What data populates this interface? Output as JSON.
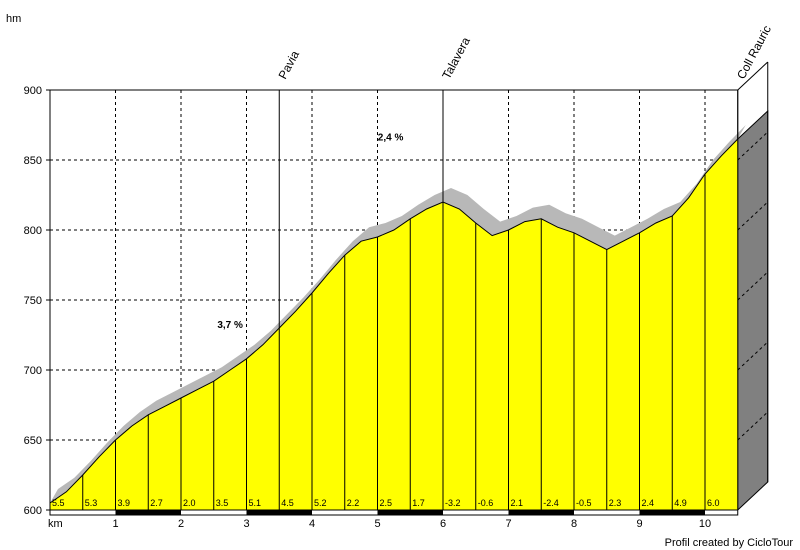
{
  "chart_data": {
    "type": "area",
    "ylabel": "hm",
    "xlabel": "km",
    "ylim": [
      600,
      900
    ],
    "xlim": [
      0,
      10.5
    ],
    "y_ticks": [
      600,
      650,
      700,
      750,
      800,
      850,
      900
    ],
    "x_ticks": [
      1,
      2,
      3,
      4,
      5,
      6,
      7,
      8,
      9,
      10
    ],
    "grid": true,
    "colors": {
      "fill": "#ffff00",
      "shadow": "#b8b8b8",
      "side": "#808080",
      "axis": "#000000"
    },
    "profile": {
      "x": [
        0,
        0.25,
        0.5,
        0.75,
        1,
        1.25,
        1.5,
        1.75,
        2,
        2.25,
        2.5,
        2.75,
        3,
        3.25,
        3.5,
        3.75,
        4,
        4.25,
        4.5,
        4.75,
        5,
        5.25,
        5.5,
        5.75,
        6,
        6.25,
        6.5,
        6.75,
        7,
        7.25,
        7.5,
        7.75,
        8,
        8.25,
        8.5,
        8.75,
        9,
        9.25,
        9.5,
        9.75,
        10,
        10.25,
        10.5
      ],
      "y": [
        605,
        613,
        625,
        638,
        650,
        660,
        668,
        674,
        680,
        686,
        692,
        700,
        708,
        718,
        730,
        742,
        755,
        769,
        782,
        792,
        795,
        800,
        808,
        815,
        820,
        815,
        805,
        796,
        800,
        806,
        808,
        802,
        798,
        792,
        786,
        792,
        798,
        805,
        810,
        823,
        840,
        853,
        865
      ]
    },
    "segment_gradients": [
      "5.5",
      "5.3",
      "3.9",
      "2.7",
      "2.0",
      "3.5",
      "5.1",
      "4.5",
      "5.2",
      "2.2",
      "2.5",
      "1.7",
      "-3.2",
      "-0.6",
      "2.1",
      "-2.4",
      "-0.5",
      "2.3",
      "2.4",
      "4.9",
      "6.0"
    ],
    "places": [
      {
        "name": "Pavia",
        "km": 3.5
      },
      {
        "name": "Talavera",
        "km": 6.0
      },
      {
        "name": "Coll Rauric",
        "km": 10.5
      }
    ],
    "annotations": [
      {
        "text": "3,7 %",
        "km": 2.75,
        "elev": 730
      },
      {
        "text": "2,4 %",
        "km": 5.2,
        "elev": 864
      }
    ],
    "credit": "Profil created by CicloTour"
  }
}
